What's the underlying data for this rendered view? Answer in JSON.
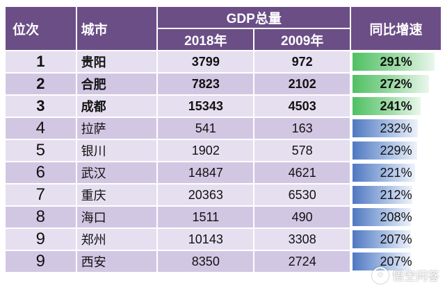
{
  "headers": {
    "rank": "位次",
    "city": "城市",
    "gdp": "GDP总量",
    "year1": "2018年",
    "year2": "2009年",
    "growth": "同比增速"
  },
  "rows": [
    {
      "rank": "1",
      "city": "贵阳",
      "gdp2018": "3799",
      "gdp2009": "972",
      "growth": "291%",
      "growth_value": 291,
      "bar_color": "green"
    },
    {
      "rank": "2",
      "city": "合肥",
      "gdp2018": "7823",
      "gdp2009": "2102",
      "growth": "272%",
      "growth_value": 272,
      "bar_color": "green"
    },
    {
      "rank": "3",
      "city": "成都",
      "gdp2018": "15343",
      "gdp2009": "4503",
      "growth": "241%",
      "growth_value": 241,
      "bar_color": "green"
    },
    {
      "rank": "4",
      "city": "拉萨",
      "gdp2018": "541",
      "gdp2009": "163",
      "growth": "232%",
      "growth_value": 232,
      "bar_color": "blue"
    },
    {
      "rank": "5",
      "city": "银川",
      "gdp2018": "1902",
      "gdp2009": "578",
      "growth": "229%",
      "growth_value": 229,
      "bar_color": "blue"
    },
    {
      "rank": "6",
      "city": "武汉",
      "gdp2018": "14847",
      "gdp2009": "4621",
      "growth": "221%",
      "growth_value": 221,
      "bar_color": "blue"
    },
    {
      "rank": "7",
      "city": "重庆",
      "gdp2018": "20363",
      "gdp2009": "6530",
      "growth": "212%",
      "growth_value": 212,
      "bar_color": "blue"
    },
    {
      "rank": "8",
      "city": "海口",
      "gdp2018": "1511",
      "gdp2009": "490",
      "growth": "208%",
      "growth_value": 208,
      "bar_color": "blue"
    },
    {
      "rank": "9",
      "city": "郑州",
      "gdp2018": "10143",
      "gdp2009": "3308",
      "growth": "207%",
      "growth_value": 207,
      "bar_color": "blue"
    },
    {
      "rank": "9",
      "city": "西安",
      "gdp2018": "8350",
      "gdp2009": "2724",
      "growth": "207%",
      "growth_value": 207,
      "bar_color": "blue"
    }
  ],
  "colors": {
    "header_bg": "#6b4e86",
    "row_light": "#e5dff0",
    "row_dark": "#d2c7e3",
    "bar_green": "#4fc063",
    "bar_blue": "#4f78c0"
  },
  "watermark": {
    "text": "悟空问答",
    "icon": "wukong-logo-icon"
  }
}
